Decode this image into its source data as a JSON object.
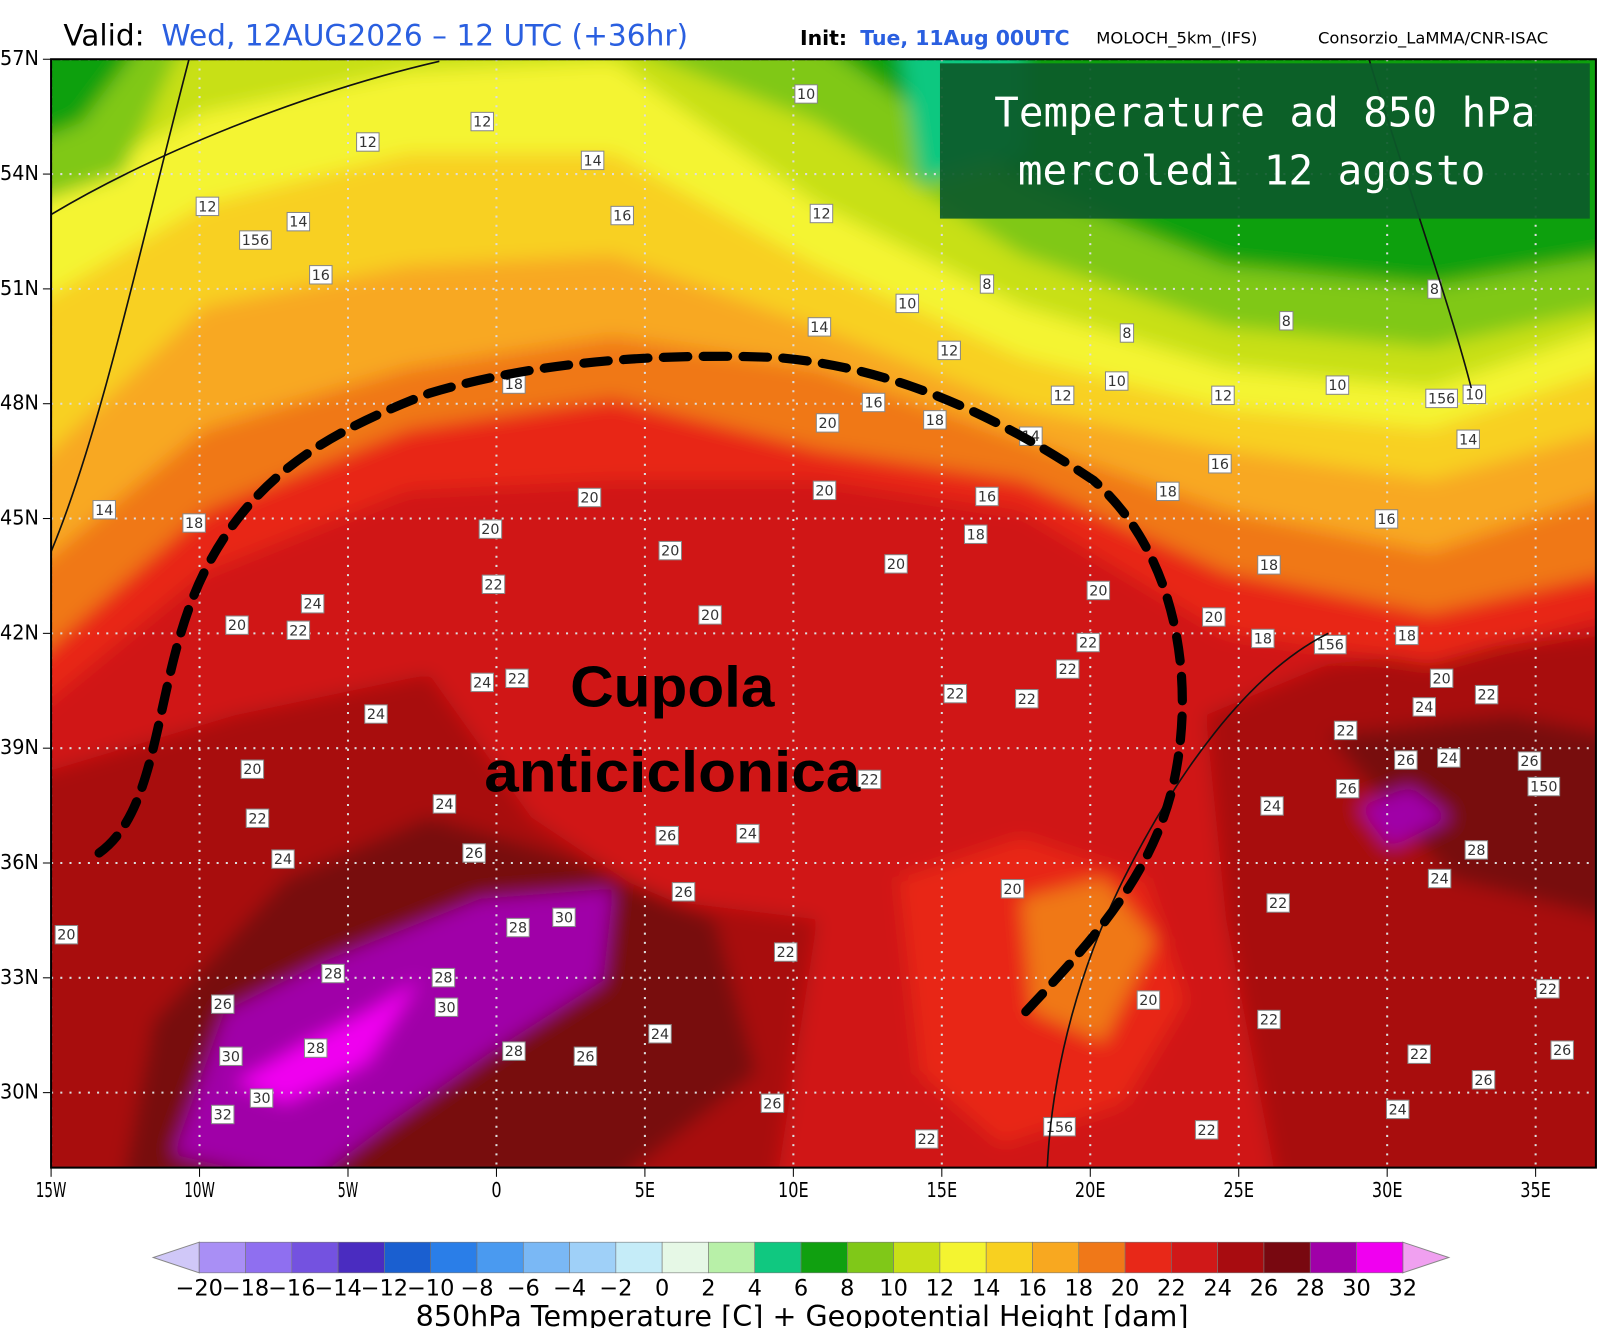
{
  "header": {
    "valid_label": "Valid:",
    "valid": "Wed, 12AUG2026 – 12 UTC (+36hr)",
    "init_label": "Init:",
    "init": "Tue, 11Aug 00UTC",
    "model": "MOLOCH_5km_(IFS)",
    "source": "Consorzio_LaMMA/CNR-ISAC"
  },
  "overlay": {
    "line1": "Temperature ad 850 hPa",
    "line2": "mercoledì 12 agosto"
  },
  "annotation": {
    "line1": "Cupola",
    "line2": "anticiclonica"
  },
  "map": {
    "lon_labels": [
      "15W",
      "10W",
      "5W",
      "0",
      "5E",
      "10E",
      "15E",
      "20E",
      "25E",
      "30E",
      "35E"
    ],
    "lat_labels": [
      "57N",
      "54N",
      "51N",
      "48N",
      "45N",
      "42N",
      "39N",
      "36N",
      "33N",
      "30N"
    ],
    "contour_labels": [
      12,
      14,
      16,
      12,
      14,
      156,
      12,
      12,
      16,
      10,
      8,
      10,
      14,
      12,
      8,
      8,
      8,
      10,
      12,
      10,
      12,
      156,
      10,
      14,
      18,
      16,
      18,
      20,
      14,
      16,
      18,
      14,
      18,
      20,
      20,
      20,
      16,
      18,
      16,
      20,
      20,
      18,
      22,
      24,
      20,
      20,
      20,
      20,
      22,
      22,
      18,
      156,
      18,
      22,
      24,
      22,
      20,
      22,
      22,
      22,
      24,
      24,
      22,
      26,
      24,
      26,
      20,
      22,
      150,
      26,
      24,
      24,
      22,
      26,
      24,
      26,
      28,
      24,
      24,
      26,
      20,
      22,
      30,
      28,
      20,
      22,
      28,
      28,
      26,
      30,
      20,
      22,
      22,
      24,
      28,
      28,
      26,
      30,
      22,
      26,
      26,
      30,
      26,
      32,
      24,
      156,
      22,
      22
    ]
  },
  "colorbar": {
    "title": "850hPa Temperature [C] + Geopotential Height [dam]",
    "ticks": [
      {
        "value": -20,
        "label": "−20"
      },
      {
        "value": -18,
        "label": "−18"
      },
      {
        "value": -16,
        "label": "−16"
      },
      {
        "value": -14,
        "label": "−14"
      },
      {
        "value": -12,
        "label": "−12"
      },
      {
        "value": -10,
        "label": "−10"
      },
      {
        "value": -8,
        "label": "−8"
      },
      {
        "value": -6,
        "label": "−6"
      },
      {
        "value": -4,
        "label": "−4"
      },
      {
        "value": -2,
        "label": "−2"
      },
      0,
      2,
      4,
      6,
      8,
      10,
      12,
      14,
      16,
      18,
      20,
      22,
      24,
      26,
      28,
      30,
      32
    ],
    "colors": [
      "#a98ff5",
      "#8f6ff0",
      "#7452e0",
      "#4a2cc0",
      "#1a5fd0",
      "#2a7ee8",
      "#4a9af0",
      "#7ab8f5",
      "#9fd0f8",
      "#c5ecf8",
      "#e6f8e6",
      "#b8f0a8",
      "#10c880",
      "#10a010",
      "#80c818",
      "#c8e018",
      "#f4f430",
      "#f8d020",
      "#f8a820",
      "#f07818",
      "#e82818",
      "#d01818",
      "#a80c10",
      "#780810",
      "#a000a8",
      "#f000f0"
    ],
    "under_color": "#d0c8f8",
    "over_color": "#f0a0f0"
  }
}
